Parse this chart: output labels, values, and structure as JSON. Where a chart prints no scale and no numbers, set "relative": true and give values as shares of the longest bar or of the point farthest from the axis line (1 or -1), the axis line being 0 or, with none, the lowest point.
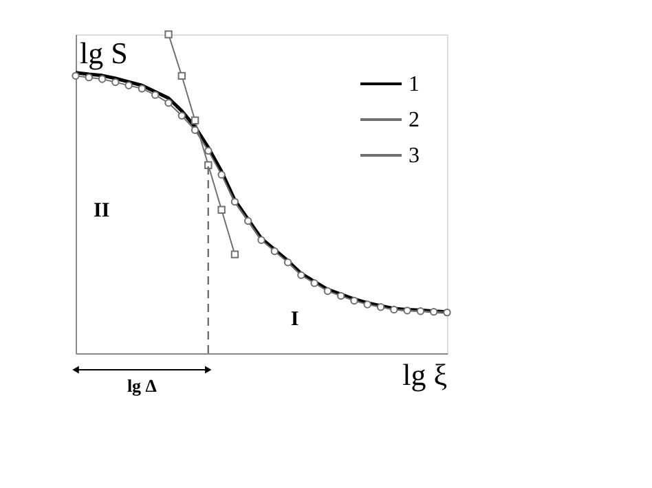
{
  "chart_data": {
    "type": "line",
    "relative": true,
    "xlabel": "lg ξ",
    "ylabel": "lg S",
    "tick_labels": false,
    "grid": false,
    "legend": "top right",
    "categories": [
      null,
      null,
      null,
      null,
      null,
      null,
      null,
      null,
      null,
      null,
      null,
      null,
      null,
      null,
      null,
      null,
      null,
      null,
      null,
      null,
      null,
      null,
      null,
      null,
      null,
      null,
      null,
      null,
      null
    ],
    "series": [
      {
        "name": "1",
        "color": "#000000",
        "marker": "none",
        "values": [
          0.88,
          0.875,
          0.871,
          0.862,
          0.851,
          0.84,
          0.82,
          0.8,
          0.76,
          0.71,
          0.645,
          0.57,
          0.48,
          0.42,
          0.36,
          0.325,
          0.29,
          0.25,
          0.225,
          0.2,
          0.185,
          0.17,
          0.158,
          0.149,
          0.14,
          0.137,
          0.135,
          0.132,
          0.13
        ]
      },
      {
        "name": "2",
        "color": "#707070",
        "marker": "square",
        "values": [
          null,
          null,
          null,
          null,
          null,
          null,
          null,
          1.0,
          0.87,
          0.73,
          0.59,
          0.45,
          0.31,
          null,
          null,
          null,
          null,
          null,
          null,
          null,
          null,
          null,
          null,
          null,
          null,
          null,
          null,
          null,
          null
        ]
      },
      {
        "name": "3",
        "color": "#707070",
        "marker": "circle",
        "values": [
          0.87,
          0.865,
          0.86,
          0.85,
          0.84,
          0.83,
          0.81,
          0.785,
          0.745,
          0.7,
          0.635,
          0.56,
          0.475,
          0.415,
          0.355,
          0.32,
          0.285,
          0.245,
          0.22,
          0.195,
          0.18,
          0.165,
          0.153,
          0.145,
          0.137,
          0.134,
          0.132,
          0.13,
          0.128
        ]
      }
    ],
    "annotations": [
      "II",
      "I",
      "lg Δ"
    ]
  }
}
